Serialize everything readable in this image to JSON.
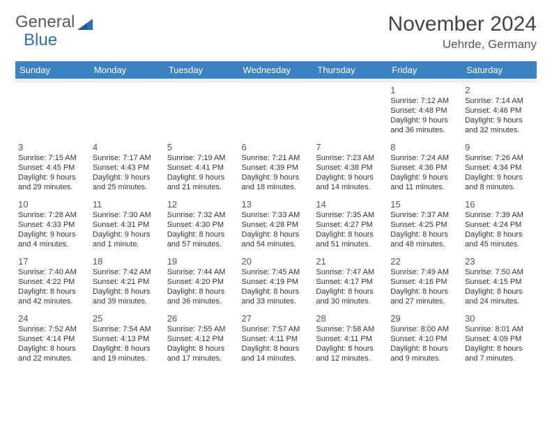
{
  "brand": {
    "word1": "General",
    "word2": "Blue"
  },
  "title": "November 2024",
  "location": "Uehrde, Germany",
  "colors": {
    "header_bg": "#3b82c4",
    "header_fg": "#ffffff",
    "rule": "#3b82c4",
    "spacer": "#eceff1",
    "text": "#333333",
    "muted": "#555555",
    "logo_gray": "#5a5a5a",
    "logo_blue": "#2b6fb0"
  },
  "dayNames": [
    "Sunday",
    "Monday",
    "Tuesday",
    "Wednesday",
    "Thursday",
    "Friday",
    "Saturday"
  ],
  "weeks": [
    [
      null,
      null,
      null,
      null,
      null,
      {
        "n": "1",
        "sunrise": "7:12 AM",
        "sunset": "4:48 PM",
        "daylight": "9 hours and 36 minutes."
      },
      {
        "n": "2",
        "sunrise": "7:14 AM",
        "sunset": "4:46 PM",
        "daylight": "9 hours and 32 minutes."
      }
    ],
    [
      {
        "n": "3",
        "sunrise": "7:15 AM",
        "sunset": "4:45 PM",
        "daylight": "9 hours and 29 minutes."
      },
      {
        "n": "4",
        "sunrise": "7:17 AM",
        "sunset": "4:43 PM",
        "daylight": "9 hours and 25 minutes."
      },
      {
        "n": "5",
        "sunrise": "7:19 AM",
        "sunset": "4:41 PM",
        "daylight": "9 hours and 21 minutes."
      },
      {
        "n": "6",
        "sunrise": "7:21 AM",
        "sunset": "4:39 PM",
        "daylight": "9 hours and 18 minutes."
      },
      {
        "n": "7",
        "sunrise": "7:23 AM",
        "sunset": "4:38 PM",
        "daylight": "9 hours and 14 minutes."
      },
      {
        "n": "8",
        "sunrise": "7:24 AM",
        "sunset": "4:36 PM",
        "daylight": "9 hours and 11 minutes."
      },
      {
        "n": "9",
        "sunrise": "7:26 AM",
        "sunset": "4:34 PM",
        "daylight": "9 hours and 8 minutes."
      }
    ],
    [
      {
        "n": "10",
        "sunrise": "7:28 AM",
        "sunset": "4:33 PM",
        "daylight": "9 hours and 4 minutes."
      },
      {
        "n": "11",
        "sunrise": "7:30 AM",
        "sunset": "4:31 PM",
        "daylight": "9 hours and 1 minute."
      },
      {
        "n": "12",
        "sunrise": "7:32 AM",
        "sunset": "4:30 PM",
        "daylight": "8 hours and 57 minutes."
      },
      {
        "n": "13",
        "sunrise": "7:33 AM",
        "sunset": "4:28 PM",
        "daylight": "8 hours and 54 minutes."
      },
      {
        "n": "14",
        "sunrise": "7:35 AM",
        "sunset": "4:27 PM",
        "daylight": "8 hours and 51 minutes."
      },
      {
        "n": "15",
        "sunrise": "7:37 AM",
        "sunset": "4:25 PM",
        "daylight": "8 hours and 48 minutes."
      },
      {
        "n": "16",
        "sunrise": "7:39 AM",
        "sunset": "4:24 PM",
        "daylight": "8 hours and 45 minutes."
      }
    ],
    [
      {
        "n": "17",
        "sunrise": "7:40 AM",
        "sunset": "4:22 PM",
        "daylight": "8 hours and 42 minutes."
      },
      {
        "n": "18",
        "sunrise": "7:42 AM",
        "sunset": "4:21 PM",
        "daylight": "8 hours and 39 minutes."
      },
      {
        "n": "19",
        "sunrise": "7:44 AM",
        "sunset": "4:20 PM",
        "daylight": "8 hours and 36 minutes."
      },
      {
        "n": "20",
        "sunrise": "7:45 AM",
        "sunset": "4:19 PM",
        "daylight": "8 hours and 33 minutes."
      },
      {
        "n": "21",
        "sunrise": "7:47 AM",
        "sunset": "4:17 PM",
        "daylight": "8 hours and 30 minutes."
      },
      {
        "n": "22",
        "sunrise": "7:49 AM",
        "sunset": "4:16 PM",
        "daylight": "8 hours and 27 minutes."
      },
      {
        "n": "23",
        "sunrise": "7:50 AM",
        "sunset": "4:15 PM",
        "daylight": "8 hours and 24 minutes."
      }
    ],
    [
      {
        "n": "24",
        "sunrise": "7:52 AM",
        "sunset": "4:14 PM",
        "daylight": "8 hours and 22 minutes."
      },
      {
        "n": "25",
        "sunrise": "7:54 AM",
        "sunset": "4:13 PM",
        "daylight": "8 hours and 19 minutes."
      },
      {
        "n": "26",
        "sunrise": "7:55 AM",
        "sunset": "4:12 PM",
        "daylight": "8 hours and 17 minutes."
      },
      {
        "n": "27",
        "sunrise": "7:57 AM",
        "sunset": "4:11 PM",
        "daylight": "8 hours and 14 minutes."
      },
      {
        "n": "28",
        "sunrise": "7:58 AM",
        "sunset": "4:11 PM",
        "daylight": "8 hours and 12 minutes."
      },
      {
        "n": "29",
        "sunrise": "8:00 AM",
        "sunset": "4:10 PM",
        "daylight": "8 hours and 9 minutes."
      },
      {
        "n": "30",
        "sunrise": "8:01 AM",
        "sunset": "4:09 PM",
        "daylight": "8 hours and 7 minutes."
      }
    ]
  ],
  "labels": {
    "sunrise": "Sunrise: ",
    "sunset": "Sunset: ",
    "daylight": "Daylight: "
  }
}
